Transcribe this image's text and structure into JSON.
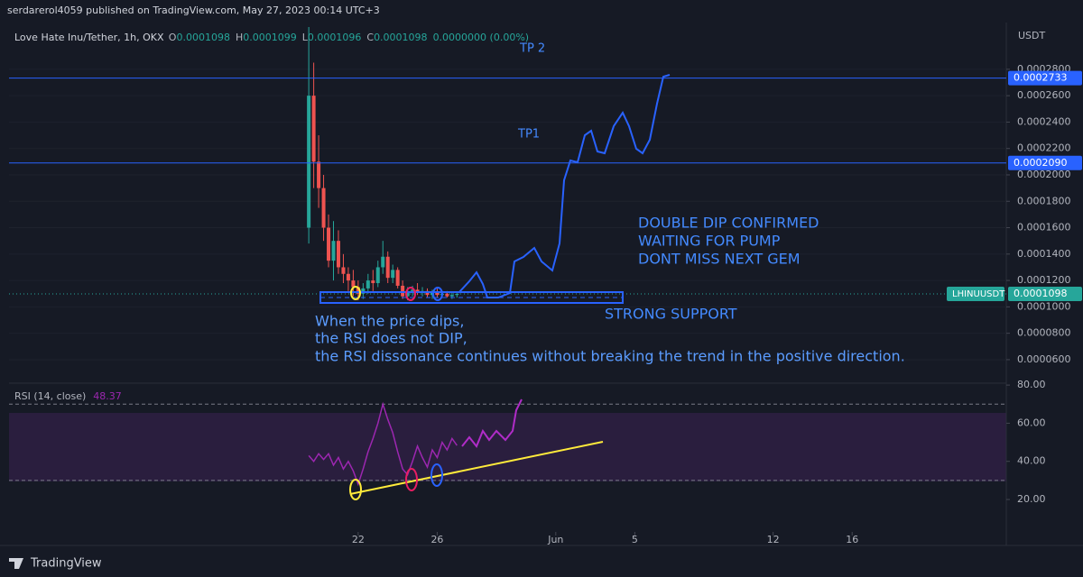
{
  "header": {
    "published": "serdarerol4059 published on TradingView.com, May 27, 2023 00:14 UTC+3"
  },
  "footer": {
    "brand": "TradingView"
  },
  "chart_data": [
    {
      "type": "candlestick",
      "symbol": "Love Hate Inu/Tether, 1h, OKX",
      "ohlc_legend": {
        "o_label": "O",
        "o": "0.0001098",
        "h_label": "H",
        "h": "0.0001099",
        "l_label": "L",
        "l": "0.0001096",
        "c_label": "C",
        "c": "0.0001098",
        "change": "0.0000000 (0.00%)"
      },
      "axis_unit": "USDT",
      "x": [
        19.5,
        19.75,
        20,
        20.25,
        20.5,
        20.75,
        21,
        21.25,
        21.5,
        21.75,
        22,
        22.25,
        22.5,
        22.75,
        23,
        23.25,
        23.5,
        23.75,
        24,
        24.25,
        24.5,
        24.75,
        25,
        25.25,
        25.5,
        25.75,
        26,
        26.25,
        26.5,
        26.75,
        27
      ],
      "open": [
        0.00016,
        0.00026,
        0.00021,
        0.00019,
        0.00016,
        0.000135,
        0.00015,
        0.00013,
        0.000125,
        0.00012,
        0.000115,
        0.00011,
        0.000114,
        0.00012,
        0.000118,
        0.00013,
        0.000138,
        0.000122,
        0.000128,
        0.000116,
        0.000108,
        0.000112,
        0.000113,
        0.000111,
        0.000112,
        0.000109,
        0.000111,
        0.000109,
        0.00011,
        0.000108,
        0.000109
      ],
      "high": [
        0.000312,
        0.000285,
        0.00023,
        0.0002,
        0.00017,
        0.000165,
        0.000158,
        0.00014,
        0.00013,
        0.000128,
        0.00012,
        0.000118,
        0.000125,
        0.000128,
        0.000135,
        0.00015,
        0.000142,
        0.000132,
        0.00013,
        0.00012,
        0.000115,
        0.000116,
        0.000118,
        0.000115,
        0.000114,
        0.000113,
        0.000114,
        0.000112,
        0.000112,
        0.000111,
        0.000111
      ],
      "low": [
        0.000148,
        0.00019,
        0.000175,
        0.00015,
        0.00013,
        0.00012,
        0.000125,
        0.000118,
        0.000112,
        0.000108,
        0.000105,
        0.000106,
        0.00011,
        0.000112,
        0.000115,
        0.000125,
        0.000118,
        0.000118,
        0.000114,
        0.000106,
        0.000105,
        0.000108,
        0.000109,
        0.000108,
        0.000107,
        0.000106,
        0.000107,
        0.000107,
        0.000107,
        0.000106,
        0.000107
      ],
      "close": [
        0.00026,
        0.00021,
        0.00019,
        0.00016,
        0.000135,
        0.00015,
        0.00013,
        0.000125,
        0.00012,
        0.000115,
        0.00011,
        0.000114,
        0.00012,
        0.000118,
        0.00013,
        0.000138,
        0.000122,
        0.000128,
        0.000116,
        0.000108,
        0.000112,
        0.000113,
        0.000111,
        0.000112,
        0.000109,
        0.000111,
        0.000109,
        0.00011,
        0.000108,
        0.000109,
        0.0001098
      ],
      "up_color": "#26a69a",
      "down_color": "#ef5350",
      "xlim": [
        4.33,
        54.8
      ],
      "ylim": [
        4.22e-05,
        0.000312
      ],
      "yticks": [
        {
          "value": 0.00028,
          "label": "0.0002800"
        },
        {
          "value": 0.00026,
          "label": "0.0002600"
        },
        {
          "value": 0.00024,
          "label": "0.0002400"
        },
        {
          "value": 0.00022,
          "label": "0.0002200"
        },
        {
          "value": 0.0002,
          "label": "0.0002000"
        },
        {
          "value": 0.00018,
          "label": "0.0001800"
        },
        {
          "value": 0.00016,
          "label": "0.0001600"
        },
        {
          "value": 0.00014,
          "label": "0.0001400"
        },
        {
          "value": 0.00012,
          "label": "0.0001200"
        },
        {
          "value": 0.0001,
          "label": "0.0001000"
        },
        {
          "value": 8e-05,
          "label": "0.0000800"
        },
        {
          "value": 6e-05,
          "label": "0.0000600"
        }
      ],
      "hlines": [
        {
          "value": 0.0002733,
          "label": "0.0002733",
          "color": "#2962ff"
        },
        {
          "value": 0.000209,
          "label": "0.0002090",
          "color": "#2962ff"
        }
      ],
      "last_price": {
        "value": 0.0001098,
        "label": "0.0001098",
        "symbol_tag": "LHINUUSDT",
        "color": "#26a69a"
      },
      "grid": true,
      "annotations": {
        "tp2": "TP 2",
        "tp1": "TP1",
        "dip1": "DOUBLE DIP CONFIRMED",
        "dip2": "WAITING FOR PUMP",
        "dip3": "DONT MISS NEXT GEM",
        "support": "STRONG SUPPORT",
        "note1": "When the price dips,",
        "note2": "the RSI does not DIP,",
        "note3": "the RSI dissonance continues without breaking the trend in the positive direction."
      }
    },
    {
      "type": "line",
      "title": "RSI (14, close)",
      "x": [
        19.5,
        19.75,
        20,
        20.25,
        20.5,
        20.75,
        21,
        21.25,
        21.5,
        21.75,
        22,
        22.25,
        22.5,
        22.75,
        23,
        23.25,
        23.5,
        23.75,
        24,
        24.25,
        24.5,
        24.75,
        25,
        25.25,
        25.5,
        25.75,
        26,
        26.25,
        26.5,
        26.75,
        27
      ],
      "series": [
        {
          "name": "RSI",
          "color": "#9c27b0",
          "values": [
            43,
            40,
            44,
            41,
            44,
            38,
            42,
            36,
            40,
            35,
            28,
            36,
            45,
            52,
            60,
            70,
            62,
            55,
            45,
            36,
            33,
            40,
            48,
            42,
            37,
            46,
            42,
            50,
            46,
            52,
            48.37
          ]
        }
      ],
      "xlim": [
        4.33,
        54.8
      ],
      "ylim": [
        3,
        81
      ],
      "yticks": [
        {
          "value": 20,
          "label": "20.00"
        },
        {
          "value": 40,
          "label": "40.00"
        },
        {
          "value": 60,
          "label": "60.00"
        },
        {
          "value": 80,
          "label": "80.00"
        }
      ],
      "bands": [
        30,
        70
      ],
      "xticks": [
        22,
        26,
        {
          "value": 32,
          "label": "Jun"
        },
        {
          "value": 36,
          "label": "5"
        },
        {
          "value": 43,
          "label": "12"
        },
        {
          "value": 47,
          "label": "16"
        }
      ]
    }
  ]
}
